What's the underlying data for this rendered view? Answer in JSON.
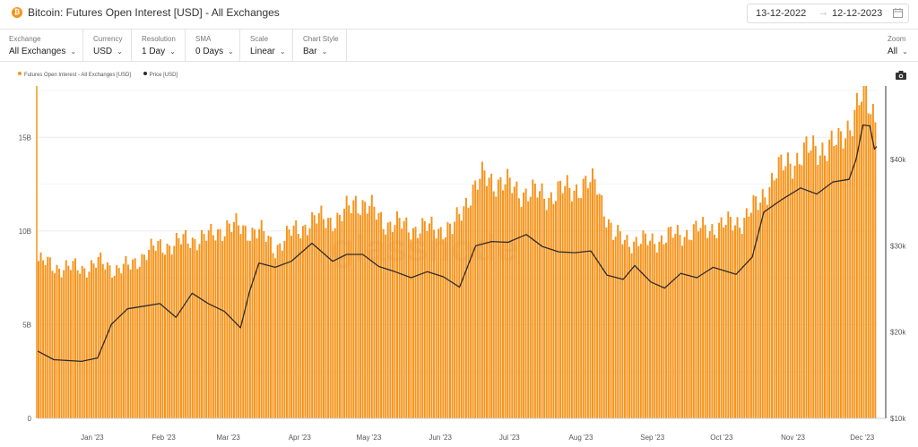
{
  "header": {
    "title": "Bitcoin: Futures Open Interest [USD] - All Exchanges",
    "coin_badge": "₿",
    "date_from": "13-12-2022",
    "date_to": "12-12-2023",
    "date_separator": "→"
  },
  "toolbar": [
    {
      "label": "Exchange",
      "value": "All Exchanges"
    },
    {
      "label": "Currency",
      "value": "USD"
    },
    {
      "label": "Resolution",
      "value": "1 Day"
    },
    {
      "label": "SMA",
      "value": "0 Days"
    },
    {
      "label": "Scale",
      "value": "Linear"
    },
    {
      "label": "Chart Style",
      "value": "Bar"
    }
  ],
  "zoom": {
    "label": "Zoom",
    "value": "All"
  },
  "icons": {
    "calendar": "calendar-icon",
    "chevron": "chevron-down-icon",
    "camera": "camera-icon"
  },
  "colors": {
    "bars": "#f7931a",
    "price_line": "#2b2b2b",
    "grid": "#ececec"
  },
  "watermark": "glassnode",
  "chart_data": {
    "type": "bar",
    "title": "Bitcoin: Futures Open Interest [USD] - All Exchanges",
    "x_range": [
      "2022-12-13",
      "2023-12-12"
    ],
    "x_ticks": [
      "Jan '23",
      "Feb '23",
      "Mar '23",
      "Apr '23",
      "May '23",
      "Jun '23",
      "Jul '23",
      "Aug '23",
      "Sep '23",
      "Oct '23",
      "Nov '23",
      "Dec '23"
    ],
    "y_left": {
      "ticks": [
        "0",
        "5B",
        "10B",
        "15B"
      ],
      "min": 0,
      "max": 17.5,
      "unit": "B"
    },
    "y_right": {
      "ticks": [
        "$10k",
        "$20k",
        "$30k",
        "$40k"
      ],
      "min": 10000,
      "max": 48000
    },
    "legend_position": "top-left",
    "grid": true,
    "series": [
      {
        "name": "Futures Open Interest - All Exchanges [USD]",
        "kind": "bar",
        "axis": "left",
        "unit": "B USD",
        "points": [
          [
            "2022-12-13",
            8.4
          ],
          [
            "2022-12-20",
            8.1
          ],
          [
            "2023-01-01",
            8.0
          ],
          [
            "2023-01-08",
            8.3
          ],
          [
            "2023-01-15",
            8.0
          ],
          [
            "2023-01-22",
            8.1
          ],
          [
            "2023-01-29",
            8.9
          ],
          [
            "2023-02-05",
            9.2
          ],
          [
            "2023-02-12",
            9.4
          ],
          [
            "2023-02-19",
            9.6
          ],
          [
            "2023-02-26",
            9.7
          ],
          [
            "2023-03-05",
            10.3
          ],
          [
            "2023-03-12",
            10.1
          ],
          [
            "2023-03-19",
            10.0
          ],
          [
            "2023-03-26",
            9.1
          ],
          [
            "2023-04-02",
            9.9
          ],
          [
            "2023-04-09",
            10.4
          ],
          [
            "2023-04-16",
            10.7
          ],
          [
            "2023-04-23",
            10.6
          ],
          [
            "2023-04-30",
            11.7
          ],
          [
            "2023-05-07",
            11.1
          ],
          [
            "2023-05-14",
            10.4
          ],
          [
            "2023-05-21",
            10.3
          ],
          [
            "2023-05-28",
            10.1
          ],
          [
            "2023-06-04",
            10.2
          ],
          [
            "2023-06-11",
            10.0
          ],
          [
            "2023-06-18",
            11.9
          ],
          [
            "2023-06-25",
            12.9
          ],
          [
            "2023-07-02",
            12.6
          ],
          [
            "2023-07-09",
            12.2
          ],
          [
            "2023-07-16",
            12.0
          ],
          [
            "2023-07-23",
            11.9
          ],
          [
            "2023-07-30",
            12.2
          ],
          [
            "2023-08-06",
            12.4
          ],
          [
            "2023-08-13",
            12.5
          ],
          [
            "2023-08-20",
            9.7
          ],
          [
            "2023-08-27",
            9.5
          ],
          [
            "2023-09-03",
            9.4
          ],
          [
            "2023-09-10",
            9.6
          ],
          [
            "2023-09-17",
            9.8
          ],
          [
            "2023-09-24",
            10.0
          ],
          [
            "2023-10-01",
            10.2
          ],
          [
            "2023-10-08",
            10.3
          ],
          [
            "2023-10-15",
            10.6
          ],
          [
            "2023-10-22",
            11.4
          ],
          [
            "2023-10-29",
            13.0
          ],
          [
            "2023-11-05",
            13.7
          ],
          [
            "2023-11-12",
            14.2
          ],
          [
            "2023-11-19",
            14.5
          ],
          [
            "2023-11-26",
            14.6
          ],
          [
            "2023-12-03",
            16.4
          ],
          [
            "2023-12-07",
            17.2
          ],
          [
            "2023-12-12",
            16.2
          ]
        ]
      },
      {
        "name": "Price [USD]",
        "kind": "line",
        "axis": "right",
        "unit": "USD",
        "points": [
          [
            "2022-12-13",
            17800
          ],
          [
            "2022-12-20",
            16800
          ],
          [
            "2023-01-01",
            16600
          ],
          [
            "2023-01-08",
            17000
          ],
          [
            "2023-01-14",
            20900
          ],
          [
            "2023-01-21",
            22700
          ],
          [
            "2023-01-28",
            23000
          ],
          [
            "2023-02-04",
            23300
          ],
          [
            "2023-02-11",
            21700
          ],
          [
            "2023-02-18",
            24500
          ],
          [
            "2023-02-25",
            23300
          ],
          [
            "2023-03-04",
            22400
          ],
          [
            "2023-03-11",
            20500
          ],
          [
            "2023-03-15",
            24800
          ],
          [
            "2023-03-19",
            28000
          ],
          [
            "2023-03-26",
            27500
          ],
          [
            "2023-04-02",
            28200
          ],
          [
            "2023-04-11",
            30300
          ],
          [
            "2023-04-20",
            28200
          ],
          [
            "2023-04-26",
            29000
          ],
          [
            "2023-05-03",
            29000
          ],
          [
            "2023-05-10",
            27600
          ],
          [
            "2023-05-17",
            27000
          ],
          [
            "2023-05-24",
            26300
          ],
          [
            "2023-05-31",
            27000
          ],
          [
            "2023-06-07",
            26400
          ],
          [
            "2023-06-14",
            25200
          ],
          [
            "2023-06-21",
            30000
          ],
          [
            "2023-06-28",
            30500
          ],
          [
            "2023-07-05",
            30400
          ],
          [
            "2023-07-13",
            31300
          ],
          [
            "2023-07-20",
            29900
          ],
          [
            "2023-07-27",
            29300
          ],
          [
            "2023-08-03",
            29200
          ],
          [
            "2023-08-10",
            29400
          ],
          [
            "2023-08-17",
            26600
          ],
          [
            "2023-08-24",
            26100
          ],
          [
            "2023-08-29",
            27700
          ],
          [
            "2023-09-05",
            25800
          ],
          [
            "2023-09-11",
            25100
          ],
          [
            "2023-09-18",
            26800
          ],
          [
            "2023-09-25",
            26300
          ],
          [
            "2023-10-02",
            27500
          ],
          [
            "2023-10-12",
            26700
          ],
          [
            "2023-10-19",
            28700
          ],
          [
            "2023-10-24",
            33900
          ],
          [
            "2023-11-01",
            35400
          ],
          [
            "2023-11-09",
            36700
          ],
          [
            "2023-11-16",
            36000
          ],
          [
            "2023-11-23",
            37400
          ],
          [
            "2023-11-30",
            37700
          ],
          [
            "2023-12-03",
            40000
          ],
          [
            "2023-12-06",
            44000
          ],
          [
            "2023-12-09",
            43900
          ],
          [
            "2023-12-11",
            41200
          ],
          [
            "2023-12-12",
            41500
          ]
        ]
      }
    ]
  }
}
